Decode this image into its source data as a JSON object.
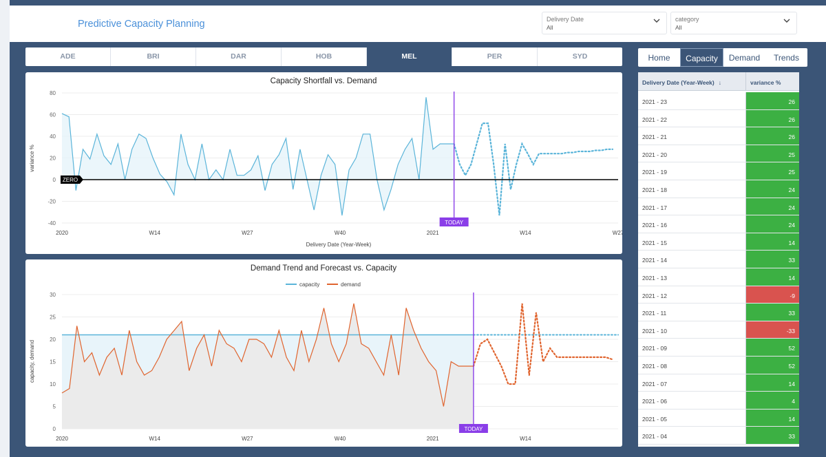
{
  "header": {
    "title": "Predictive Capacity Planning",
    "filters": [
      {
        "label": "Delivery Date",
        "value": "All"
      },
      {
        "label": "category",
        "value": "All"
      }
    ]
  },
  "city_tabs": [
    "ADE",
    "BRI",
    "DAR",
    "HOB",
    "MEL",
    "PER",
    "SYD"
  ],
  "active_city": "MEL",
  "nav_tabs": [
    "Home",
    "Capacity",
    "Demand",
    "Trends"
  ],
  "active_nav": "Capacity",
  "colors": {
    "navy": "#3b5577",
    "capacity": "#5ab4d9",
    "demand": "#e0642e",
    "today": "#8a3ee8",
    "positive": "#3cb043",
    "negative": "#d9534f"
  },
  "chart_data": [
    {
      "type": "line",
      "title": "Capacity Shortfall vs. Demand",
      "xlabel": "Delivery Date (Year-Week)",
      "ylabel": "variance %",
      "ylim": [
        -40,
        80
      ],
      "yticks": [
        80,
        60,
        40,
        20,
        0,
        -20,
        -40
      ],
      "xtick_labels": [
        "2020",
        "W14",
        "W27",
        "W40",
        "2021",
        "W14",
        "W27"
      ],
      "zero_label": "ZERO",
      "today_label": "TODAY",
      "series": [
        {
          "role": "actual",
          "values": [
            61,
            58,
            -10,
            28,
            19,
            42,
            22,
            14,
            33,
            0,
            28,
            42,
            38,
            20,
            5,
            -2,
            -14,
            42,
            14,
            0,
            33,
            0,
            9,
            0,
            28,
            4,
            4,
            9,
            22,
            -10,
            14,
            23,
            38,
            -9,
            28,
            0,
            -28,
            4,
            23,
            14,
            -33,
            9,
            20,
            42,
            42,
            0,
            -28,
            -9,
            14,
            28,
            38,
            0,
            76,
            28,
            33,
            33,
            33
          ]
        },
        {
          "role": "forecast",
          "values": [
            33,
            14,
            4,
            14,
            33,
            52,
            52,
            14,
            -33,
            33,
            -9,
            14,
            33,
            24,
            14,
            24,
            24,
            24,
            24,
            24,
            25,
            25,
            26,
            26,
            26,
            27,
            27,
            28,
            28
          ]
        }
      ]
    },
    {
      "type": "area",
      "title": "Demand Trend and Forecast vs. Capacity",
      "xlabel": "",
      "ylabel": "capacity, demand",
      "ylim": [
        0,
        30
      ],
      "yticks": [
        30,
        25,
        20,
        15,
        10,
        5,
        0
      ],
      "xtick_labels": [
        "2020",
        "W14",
        "W27",
        "W40",
        "2021",
        "W14"
      ],
      "today_label": "TODAY",
      "legend": [
        "capacity",
        "demand"
      ],
      "capacity": 21,
      "series": [
        {
          "name": "demand",
          "role": "actual",
          "values": [
            8,
            9,
            23,
            15,
            17,
            12,
            16,
            18,
            12,
            22,
            15,
            12,
            13,
            16,
            20,
            22,
            24,
            13,
            18,
            21,
            14,
            22,
            19,
            18,
            15,
            20,
            20,
            19,
            16,
            22,
            16,
            13,
            22,
            15,
            20,
            27,
            19,
            15,
            19,
            28,
            19,
            18,
            15,
            12,
            21,
            12,
            27,
            22,
            18,
            15,
            13,
            5,
            15,
            14,
            14,
            14
          ]
        },
        {
          "name": "demand",
          "role": "forecast",
          "values": [
            14,
            19,
            20,
            17,
            14,
            10,
            10,
            28,
            12,
            26,
            15,
            18,
            16,
            16,
            16,
            16,
            16,
            16,
            16,
            16,
            15.5
          ]
        }
      ]
    }
  ],
  "table": {
    "headers": [
      "Delivery Date (Year-Week)",
      "variance %"
    ],
    "sort_indicator": "↓",
    "rows": [
      {
        "date": "2021 - 23",
        "variance": "26"
      },
      {
        "date": "2021 - 22",
        "variance": "26"
      },
      {
        "date": "2021 - 21",
        "variance": "26"
      },
      {
        "date": "2021 - 20",
        "variance": "25"
      },
      {
        "date": "2021 - 19",
        "variance": "25"
      },
      {
        "date": "2021 - 18",
        "variance": "24"
      },
      {
        "date": "2021 - 17",
        "variance": "24"
      },
      {
        "date": "2021 - 16",
        "variance": "24"
      },
      {
        "date": "2021 - 15",
        "variance": "14"
      },
      {
        "date": "2021 - 14",
        "variance": "33"
      },
      {
        "date": "2021 - 13",
        "variance": "14"
      },
      {
        "date": "2021 - 12",
        "variance": "-9"
      },
      {
        "date": "2021 - 11",
        "variance": "33"
      },
      {
        "date": "2021 - 10",
        "variance": "-33"
      },
      {
        "date": "2021 - 09",
        "variance": "52"
      },
      {
        "date": "2021 - 08",
        "variance": "52"
      },
      {
        "date": "2021 - 07",
        "variance": "14"
      },
      {
        "date": "2021 - 06",
        "variance": "4"
      },
      {
        "date": "2021 - 05",
        "variance": "14"
      },
      {
        "date": "2021 - 04",
        "variance": "33"
      }
    ]
  }
}
